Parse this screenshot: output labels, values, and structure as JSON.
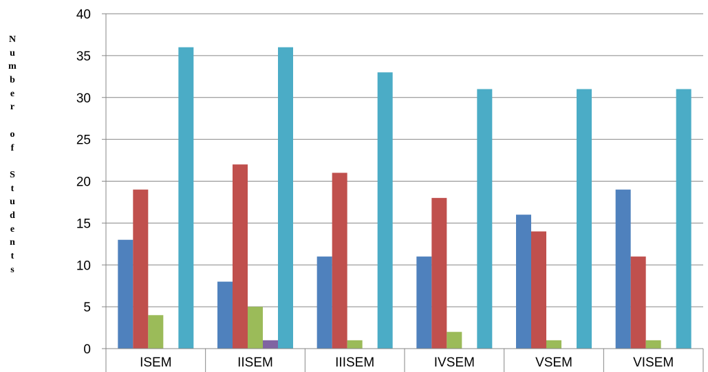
{
  "chart_data": {
    "type": "bar",
    "title": "",
    "xlabel": "",
    "ylabel": "Number of Students",
    "ylim": [
      0,
      40
    ],
    "ytick_step": 5,
    "yticks": [
      "0",
      "5",
      "10",
      "15",
      "20",
      "25",
      "30",
      "35",
      "40"
    ],
    "grid": true,
    "legend": "none",
    "categories": [
      "ISEM",
      "IISEM",
      "IIISEM",
      "IVSEM",
      "VSEM",
      "VISEM"
    ],
    "series": [
      {
        "color": "#4F81BD",
        "values": [
          13,
          8,
          11,
          11,
          16,
          19
        ]
      },
      {
        "color": "#C0504D",
        "values": [
          19,
          22,
          21,
          18,
          14,
          11
        ]
      },
      {
        "color": "#9BBB59",
        "values": [
          4,
          5,
          1,
          2,
          1,
          1
        ]
      },
      {
        "color": "#8064A2",
        "values": [
          0,
          1,
          0,
          0,
          0,
          0
        ]
      },
      {
        "color": "#4BACC6",
        "values": [
          36,
          36,
          33,
          31,
          31,
          31
        ]
      }
    ]
  }
}
